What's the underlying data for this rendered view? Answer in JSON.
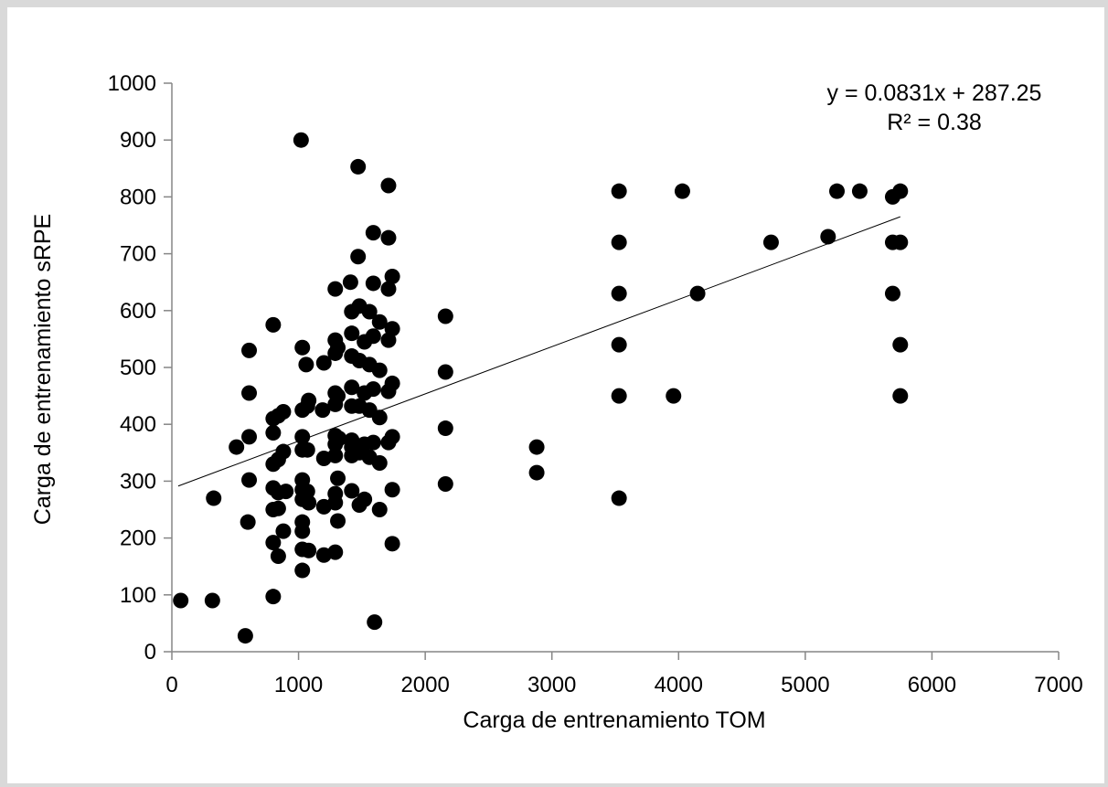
{
  "chart_data": {
    "type": "scatter",
    "xlabel": "Carga de entrenamiento TOM",
    "ylabel": "Carga de entrenamiento sRPE",
    "xlim": [
      0,
      7000
    ],
    "ylim": [
      0,
      1000
    ],
    "x_ticks": [
      "0",
      "1000",
      "2000",
      "3000",
      "4000",
      "5000",
      "6000",
      "7000"
    ],
    "y_ticks": [
      "0",
      "100",
      "200",
      "300",
      "400",
      "500",
      "600",
      "700",
      "800",
      "900",
      "1000"
    ],
    "grid": false,
    "legend": "none",
    "trendline": {
      "slope": 0.0831,
      "intercept": 287.25,
      "x_range": [
        50,
        5750
      ],
      "equation": "y = 0.0831x + 287.25",
      "r_squared": "R² = 0.38"
    },
    "points": [
      [
        70,
        90
      ],
      [
        320,
        90
      ],
      [
        330,
        270
      ],
      [
        510,
        360
      ],
      [
        580,
        28
      ],
      [
        600,
        228
      ],
      [
        610,
        530
      ],
      [
        610,
        455
      ],
      [
        610,
        378
      ],
      [
        610,
        302
      ],
      [
        800,
        575
      ],
      [
        800,
        410
      ],
      [
        800,
        385
      ],
      [
        800,
        330
      ],
      [
        800,
        288
      ],
      [
        800,
        250
      ],
      [
        800,
        192
      ],
      [
        800,
        97
      ],
      [
        840,
        415
      ],
      [
        840,
        338
      ],
      [
        840,
        280
      ],
      [
        840,
        252
      ],
      [
        840,
        168
      ],
      [
        880,
        422
      ],
      [
        880,
        352
      ],
      [
        880,
        212
      ],
      [
        900,
        282
      ],
      [
        1020,
        900
      ],
      [
        1030,
        535
      ],
      [
        1030,
        425
      ],
      [
        1030,
        378
      ],
      [
        1030,
        355
      ],
      [
        1030,
        302
      ],
      [
        1030,
        285
      ],
      [
        1030,
        268
      ],
      [
        1030,
        228
      ],
      [
        1030,
        212
      ],
      [
        1030,
        180
      ],
      [
        1030,
        143
      ],
      [
        1060,
        505
      ],
      [
        1070,
        432
      ],
      [
        1070,
        355
      ],
      [
        1070,
        282
      ],
      [
        1080,
        442
      ],
      [
        1080,
        262
      ],
      [
        1080,
        178
      ],
      [
        1190,
        425
      ],
      [
        1200,
        508
      ],
      [
        1200,
        340
      ],
      [
        1200,
        255
      ],
      [
        1200,
        170
      ],
      [
        1290,
        638
      ],
      [
        1290,
        548
      ],
      [
        1290,
        525
      ],
      [
        1290,
        455
      ],
      [
        1290,
        435
      ],
      [
        1290,
        380
      ],
      [
        1290,
        365
      ],
      [
        1290,
        345
      ],
      [
        1290,
        278
      ],
      [
        1290,
        262
      ],
      [
        1290,
        175
      ],
      [
        1310,
        535
      ],
      [
        1310,
        450
      ],
      [
        1310,
        305
      ],
      [
        1310,
        230
      ],
      [
        1320,
        375
      ],
      [
        1410,
        650
      ],
      [
        1420,
        598
      ],
      [
        1420,
        560
      ],
      [
        1420,
        520
      ],
      [
        1420,
        465
      ],
      [
        1420,
        432
      ],
      [
        1420,
        372
      ],
      [
        1420,
        360
      ],
      [
        1420,
        345
      ],
      [
        1420,
        283
      ],
      [
        1470,
        853
      ],
      [
        1470,
        695
      ],
      [
        1480,
        608
      ],
      [
        1480,
        512
      ],
      [
        1480,
        432
      ],
      [
        1480,
        350
      ],
      [
        1480,
        258
      ],
      [
        1520,
        545
      ],
      [
        1520,
        455
      ],
      [
        1520,
        365
      ],
      [
        1520,
        268
      ],
      [
        1560,
        598
      ],
      [
        1560,
        505
      ],
      [
        1560,
        425
      ],
      [
        1560,
        342
      ],
      [
        1590,
        737
      ],
      [
        1590,
        648
      ],
      [
        1590,
        555
      ],
      [
        1590,
        462
      ],
      [
        1590,
        368
      ],
      [
        1600,
        52
      ],
      [
        1640,
        580
      ],
      [
        1640,
        495
      ],
      [
        1640,
        412
      ],
      [
        1640,
        332
      ],
      [
        1640,
        250
      ],
      [
        1710,
        820
      ],
      [
        1710,
        728
      ],
      [
        1710,
        638
      ],
      [
        1710,
        548
      ],
      [
        1710,
        458
      ],
      [
        1710,
        368
      ],
      [
        1740,
        660
      ],
      [
        1740,
        568
      ],
      [
        1740,
        472
      ],
      [
        1740,
        378
      ],
      [
        1740,
        285
      ],
      [
        1740,
        190
      ],
      [
        2160,
        590
      ],
      [
        2160,
        492
      ],
      [
        2160,
        393
      ],
      [
        2160,
        295
      ],
      [
        2880,
        360
      ],
      [
        2880,
        315
      ],
      [
        3530,
        810
      ],
      [
        3530,
        720
      ],
      [
        3530,
        630
      ],
      [
        3530,
        540
      ],
      [
        3530,
        450
      ],
      [
        3530,
        270
      ],
      [
        3960,
        450
      ],
      [
        4030,
        810
      ],
      [
        4150,
        630
      ],
      [
        4730,
        720
      ],
      [
        5180,
        730
      ],
      [
        5250,
        810
      ],
      [
        5430,
        810
      ],
      [
        5690,
        800
      ],
      [
        5690,
        720
      ],
      [
        5690,
        630
      ],
      [
        5750,
        810
      ],
      [
        5750,
        720
      ],
      [
        5750,
        540
      ],
      [
        5750,
        450
      ]
    ]
  }
}
